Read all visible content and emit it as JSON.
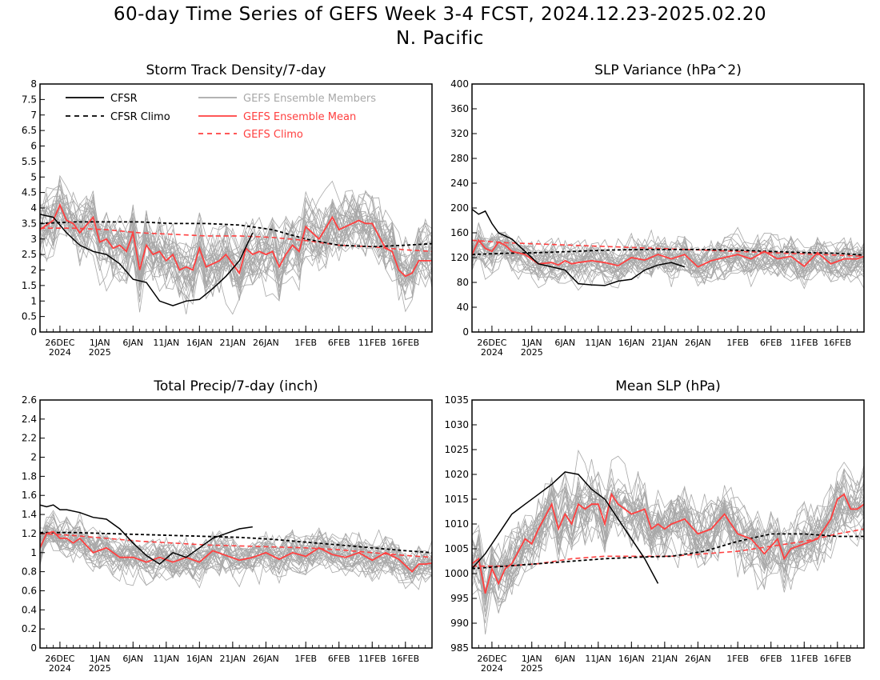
{
  "figure": {
    "title": "60-day Time Series of GEFS Week 3-4 FCST, 2024.12.23-2025.02.20",
    "subtitle": "N. Pacific"
  },
  "colors": {
    "cfsr": "#000000",
    "cfsr_climo": "#000000",
    "members": "#a8a8a8",
    "ens_mean": "#ff4040",
    "gefs_climo": "#ff4040"
  },
  "legend": {
    "cfsr": "CFSR",
    "cfsr_climo": "CFSR Climo",
    "members": "GEFS Ensemble Members",
    "ens_mean": "GEFS Ensemble Mean",
    "gefs_climo": "GEFS Climo"
  },
  "chart_data": [
    {
      "type": "line",
      "title": "Storm Track Density/7-day",
      "x_start": "2024-12-23",
      "x_end": "2025-02-20",
      "x_tick_labels": [
        "26DEC\n2024",
        "1JAN\n2025",
        "6JAN",
        "11JAN",
        "16JAN",
        "21JAN",
        "26JAN",
        "1FEB",
        "6FEB",
        "11FEB",
        "16FEB"
      ],
      "x_tick_days": [
        3,
        9,
        14,
        19,
        24,
        29,
        34,
        40,
        45,
        50,
        55
      ],
      "ylim": [
        0,
        8
      ],
      "y_ticks": [
        0,
        0.5,
        1,
        1.5,
        2,
        2.5,
        3,
        3.5,
        4,
        4.5,
        5,
        5.5,
        6,
        6.5,
        7,
        7.5,
        8
      ],
      "y_tick_labels": [
        "0",
        "0.5",
        "1",
        "1.5",
        "2",
        "2.5",
        "3",
        "3.5",
        "4",
        "4.5",
        "5",
        "5.5",
        "6",
        "6.5",
        "7",
        "7.5",
        "8"
      ],
      "legend_position": "top-left",
      "member_count": 30,
      "member_spread": 1.1,
      "series": {
        "cfsr": {
          "x": [
            0,
            2,
            4,
            6,
            8,
            10,
            12,
            14,
            16,
            18,
            20,
            22,
            24,
            26,
            28,
            30,
            32
          ],
          "y": [
            3.8,
            3.7,
            3.2,
            2.8,
            2.6,
            2.5,
            2.2,
            1.7,
            1.6,
            1.0,
            0.85,
            1.0,
            1.05,
            1.4,
            1.8,
            2.3,
            3.2
          ]
        },
        "cfsr_climo": {
          "x": [
            0,
            5,
            10,
            15,
            20,
            25,
            30,
            35,
            40,
            45,
            50,
            55,
            59
          ],
          "y": [
            3.5,
            3.55,
            3.55,
            3.55,
            3.5,
            3.5,
            3.45,
            3.3,
            3.0,
            2.8,
            2.75,
            2.8,
            2.85
          ]
        },
        "ens_mean": {
          "x": [
            0,
            2,
            3,
            4,
            5,
            6,
            8,
            9,
            10,
            11,
            12,
            13,
            14,
            15,
            16,
            17,
            18,
            19,
            20,
            21,
            22,
            23,
            24,
            25,
            26,
            27,
            28,
            29,
            30,
            31,
            32,
            33,
            34,
            35,
            36,
            37,
            38,
            39,
            40,
            42,
            44,
            45,
            47,
            48,
            49,
            50,
            52,
            53,
            54,
            55,
            56,
            57,
            58,
            59
          ],
          "y": [
            3.3,
            3.6,
            4.1,
            3.6,
            3.5,
            3.2,
            3.7,
            2.9,
            3.0,
            2.7,
            2.8,
            2.6,
            3.2,
            2.0,
            2.8,
            2.5,
            2.6,
            2.3,
            2.5,
            2.0,
            2.1,
            2.0,
            2.7,
            2.1,
            2.2,
            2.3,
            2.5,
            2.2,
            1.9,
            2.7,
            2.5,
            2.6,
            2.5,
            2.6,
            2.1,
            2.5,
            2.8,
            2.6,
            3.4,
            3.0,
            3.7,
            3.3,
            3.5,
            3.6,
            3.5,
            3.5,
            2.7,
            2.6,
            2.0,
            1.8,
            1.9,
            2.3,
            2.3,
            2.3
          ]
        },
        "gefs_climo": {
          "x": [
            0,
            5,
            10,
            15,
            20,
            25,
            30,
            35,
            40,
            45,
            50,
            55,
            59
          ],
          "y": [
            3.35,
            3.35,
            3.3,
            3.2,
            3.15,
            3.1,
            3.1,
            3.05,
            2.95,
            2.8,
            2.75,
            2.65,
            2.6
          ]
        }
      }
    },
    {
      "type": "line",
      "title": "SLP Variance (hPa^2)",
      "x_start": "2024-12-23",
      "x_end": "2025-02-20",
      "x_tick_labels": [
        "26DEC\n2024",
        "1JAN\n2025",
        "6JAN",
        "11JAN",
        "16JAN",
        "21JAN",
        "26JAN",
        "1FEB",
        "6FEB",
        "11FEB",
        "16FEB"
      ],
      "x_tick_days": [
        3,
        9,
        14,
        19,
        24,
        29,
        34,
        40,
        45,
        50,
        55
      ],
      "ylim": [
        0,
        400
      ],
      "y_ticks": [
        0,
        40,
        80,
        120,
        160,
        200,
        240,
        280,
        320,
        360,
        400
      ],
      "y_tick_labels": [
        "0",
        "40",
        "80",
        "120",
        "160",
        "200",
        "240",
        "280",
        "320",
        "360",
        "400"
      ],
      "member_count": 30,
      "member_spread": 35,
      "series": {
        "cfsr": {
          "x": [
            0,
            1,
            2,
            3,
            4,
            6,
            8,
            10,
            12,
            14,
            16,
            18,
            20,
            22,
            24,
            26,
            28,
            30,
            32
          ],
          "y": [
            198,
            190,
            195,
            175,
            160,
            150,
            130,
            110,
            105,
            100,
            78,
            76,
            75,
            82,
            85,
            100,
            108,
            112,
            105
          ]
        },
        "cfsr_climo": {
          "x": [
            0,
            5,
            10,
            15,
            20,
            25,
            30,
            35,
            40,
            45,
            50,
            55,
            59
          ],
          "y": [
            125,
            127,
            128,
            130,
            132,
            133,
            133,
            133,
            132,
            130,
            128,
            127,
            124
          ]
        },
        "ens_mean": {
          "x": [
            0,
            1,
            2,
            3,
            4,
            5,
            6,
            8,
            10,
            12,
            13,
            14,
            15,
            16,
            18,
            20,
            22,
            24,
            26,
            28,
            30,
            32,
            34,
            36,
            38,
            40,
            42,
            44,
            46,
            48,
            50,
            52,
            54,
            56,
            58,
            59
          ],
          "y": [
            125,
            148,
            135,
            130,
            145,
            140,
            130,
            125,
            110,
            112,
            108,
            115,
            110,
            112,
            115,
            112,
            107,
            120,
            116,
            125,
            118,
            125,
            105,
            115,
            120,
            125,
            118,
            130,
            118,
            122,
            106,
            128,
            110,
            118,
            118,
            122
          ]
        },
        "gefs_climo": {
          "x": [
            0,
            5,
            10,
            15,
            20,
            25,
            30,
            35,
            40,
            45,
            50,
            55,
            59
          ],
          "y": [
            148,
            144,
            142,
            140,
            138,
            136,
            134,
            132,
            130,
            128,
            126,
            124,
            122
          ]
        }
      }
    },
    {
      "type": "line",
      "title": "Total Precip/7-day (inch)",
      "x_start": "2024-12-23",
      "x_end": "2025-02-20",
      "x_tick_labels": [
        "26DEC\n2024",
        "1JAN\n2025",
        "6JAN",
        "11JAN",
        "16JAN",
        "21JAN",
        "26JAN",
        "1FEB",
        "6FEB",
        "11FEB",
        "16FEB"
      ],
      "x_tick_days": [
        3,
        9,
        14,
        19,
        24,
        29,
        34,
        40,
        45,
        50,
        55
      ],
      "ylim": [
        0,
        2.6
      ],
      "y_ticks": [
        0,
        0.2,
        0.4,
        0.6,
        0.8,
        1,
        1.2,
        1.4,
        1.6,
        1.8,
        2,
        2.2,
        2.4,
        2.6
      ],
      "y_tick_labels": [
        "0",
        "0.2",
        "0.4",
        "0.6",
        "0.8",
        "1",
        "1.2",
        "1.4",
        "1.6",
        "1.8",
        "2",
        "2.2",
        "2.4",
        "2.6"
      ],
      "member_count": 30,
      "member_spread": 0.22,
      "series": {
        "cfsr": {
          "x": [
            0,
            1,
            2,
            3,
            4,
            6,
            8,
            10,
            12,
            14,
            16,
            18,
            20,
            22,
            24,
            26,
            28,
            30,
            32
          ],
          "y": [
            1.5,
            1.48,
            1.5,
            1.45,
            1.45,
            1.42,
            1.37,
            1.35,
            1.25,
            1.1,
            0.97,
            0.88,
            1.0,
            0.95,
            1.05,
            1.15,
            1.2,
            1.25,
            1.27
          ]
        },
        "cfsr_climo": {
          "x": [
            0,
            5,
            10,
            15,
            20,
            25,
            30,
            35,
            40,
            45,
            50,
            55,
            59
          ],
          "y": [
            1.21,
            1.21,
            1.2,
            1.19,
            1.18,
            1.17,
            1.16,
            1.14,
            1.11,
            1.08,
            1.05,
            1.02,
            1.0
          ]
        },
        "ens_mean": {
          "x": [
            0,
            1,
            2,
            3,
            4,
            5,
            6,
            8,
            10,
            12,
            14,
            16,
            18,
            20,
            22,
            24,
            26,
            28,
            30,
            32,
            34,
            36,
            38,
            40,
            42,
            44,
            46,
            48,
            50,
            52,
            54,
            56,
            57,
            58,
            59
          ],
          "y": [
            1.05,
            1.2,
            1.22,
            1.15,
            1.15,
            1.1,
            1.15,
            1.0,
            1.05,
            0.95,
            0.95,
            0.9,
            0.95,
            0.9,
            0.95,
            0.9,
            1.02,
            0.97,
            0.92,
            0.95,
            1.0,
            0.93,
            1.0,
            0.96,
            1.05,
            0.98,
            0.95,
            1.0,
            0.92,
            1.0,
            0.93,
            0.8,
            0.88,
            0.88,
            0.89
          ]
        },
        "gefs_climo": {
          "x": [
            0,
            5,
            10,
            15,
            20,
            25,
            30,
            35,
            40,
            45,
            50,
            55,
            59
          ],
          "y": [
            1.2,
            1.18,
            1.15,
            1.12,
            1.1,
            1.08,
            1.07,
            1.06,
            1.05,
            1.03,
            1.0,
            0.97,
            0.95
          ]
        }
      }
    },
    {
      "type": "line",
      "title": "Mean SLP (hPa)",
      "x_start": "2024-12-23",
      "x_end": "2025-02-20",
      "x_tick_labels": [
        "26DEC\n2024",
        "1JAN\n2025",
        "6JAN",
        "11JAN",
        "16JAN",
        "21JAN",
        "26JAN",
        "1FEB",
        "6FEB",
        "11FEB",
        "16FEB"
      ],
      "x_tick_days": [
        3,
        9,
        14,
        19,
        24,
        29,
        34,
        40,
        45,
        50,
        55
      ],
      "ylim": [
        985,
        1035
      ],
      "y_ticks": [
        985,
        990,
        995,
        1000,
        1005,
        1010,
        1015,
        1020,
        1025,
        1030,
        1035
      ],
      "y_tick_labels": [
        "985",
        "990",
        "995",
        "1000",
        "1005",
        "1010",
        "1015",
        "1020",
        "1025",
        "1030",
        "1035"
      ],
      "member_count": 30,
      "member_spread": 7,
      "series": {
        "cfsr": {
          "x": [
            0,
            2,
            4,
            6,
            8,
            10,
            12,
            14,
            16,
            18,
            20,
            22,
            24,
            26,
            28,
            30,
            32
          ],
          "y": [
            1001,
            1004,
            1008,
            1012,
            1014,
            1016,
            1018,
            1020.5,
            1020,
            1017,
            1015,
            1011,
            1007,
            1003,
            998,
            null,
            null
          ]
        },
        "cfsr_climo": {
          "x": [
            0,
            5,
            10,
            15,
            20,
            25,
            30,
            35,
            40,
            45,
            50,
            55,
            59
          ],
          "y": [
            1001,
            1001.5,
            1002,
            1002.5,
            1003,
            1003.3,
            1003.5,
            1004.5,
            1006.5,
            1008,
            1008,
            1007.5,
            1007.5
          ]
        },
        "ens_mean": {
          "x": [
            0,
            1,
            2,
            3,
            4,
            5,
            6,
            8,
            9,
            10,
            12,
            13,
            14,
            15,
            16,
            17,
            18,
            19,
            20,
            21,
            22,
            24,
            26,
            27,
            28,
            29,
            30,
            32,
            34,
            36,
            38,
            40,
            42,
            44,
            46,
            47,
            48,
            50,
            52,
            54,
            55,
            56,
            57,
            58,
            59
          ],
          "y": [
            1002,
            1003,
            996,
            1001,
            998,
            1001,
            1002,
            1007,
            1006,
            1009,
            1014,
            1009,
            1012,
            1010,
            1014,
            1013,
            1014,
            1014,
            1010,
            1016,
            1014,
            1012,
            1013,
            1009,
            1010,
            1009,
            1010,
            1011,
            1008,
            1009,
            1012,
            1008,
            1007,
            1004,
            1007,
            1003,
            1005,
            1006,
            1007,
            1011,
            1015,
            1016,
            1013,
            1013,
            1014
          ]
        },
        "gefs_climo": {
          "x": [
            0,
            5,
            10,
            15,
            20,
            25,
            30,
            35,
            40,
            45,
            50,
            55,
            59
          ],
          "y": [
            1001.5,
            1001.5,
            1002,
            1003,
            1003.5,
            1003.5,
            1003.5,
            1004,
            1004.5,
            1005.5,
            1006.5,
            1008,
            1009
          ]
        }
      }
    }
  ]
}
